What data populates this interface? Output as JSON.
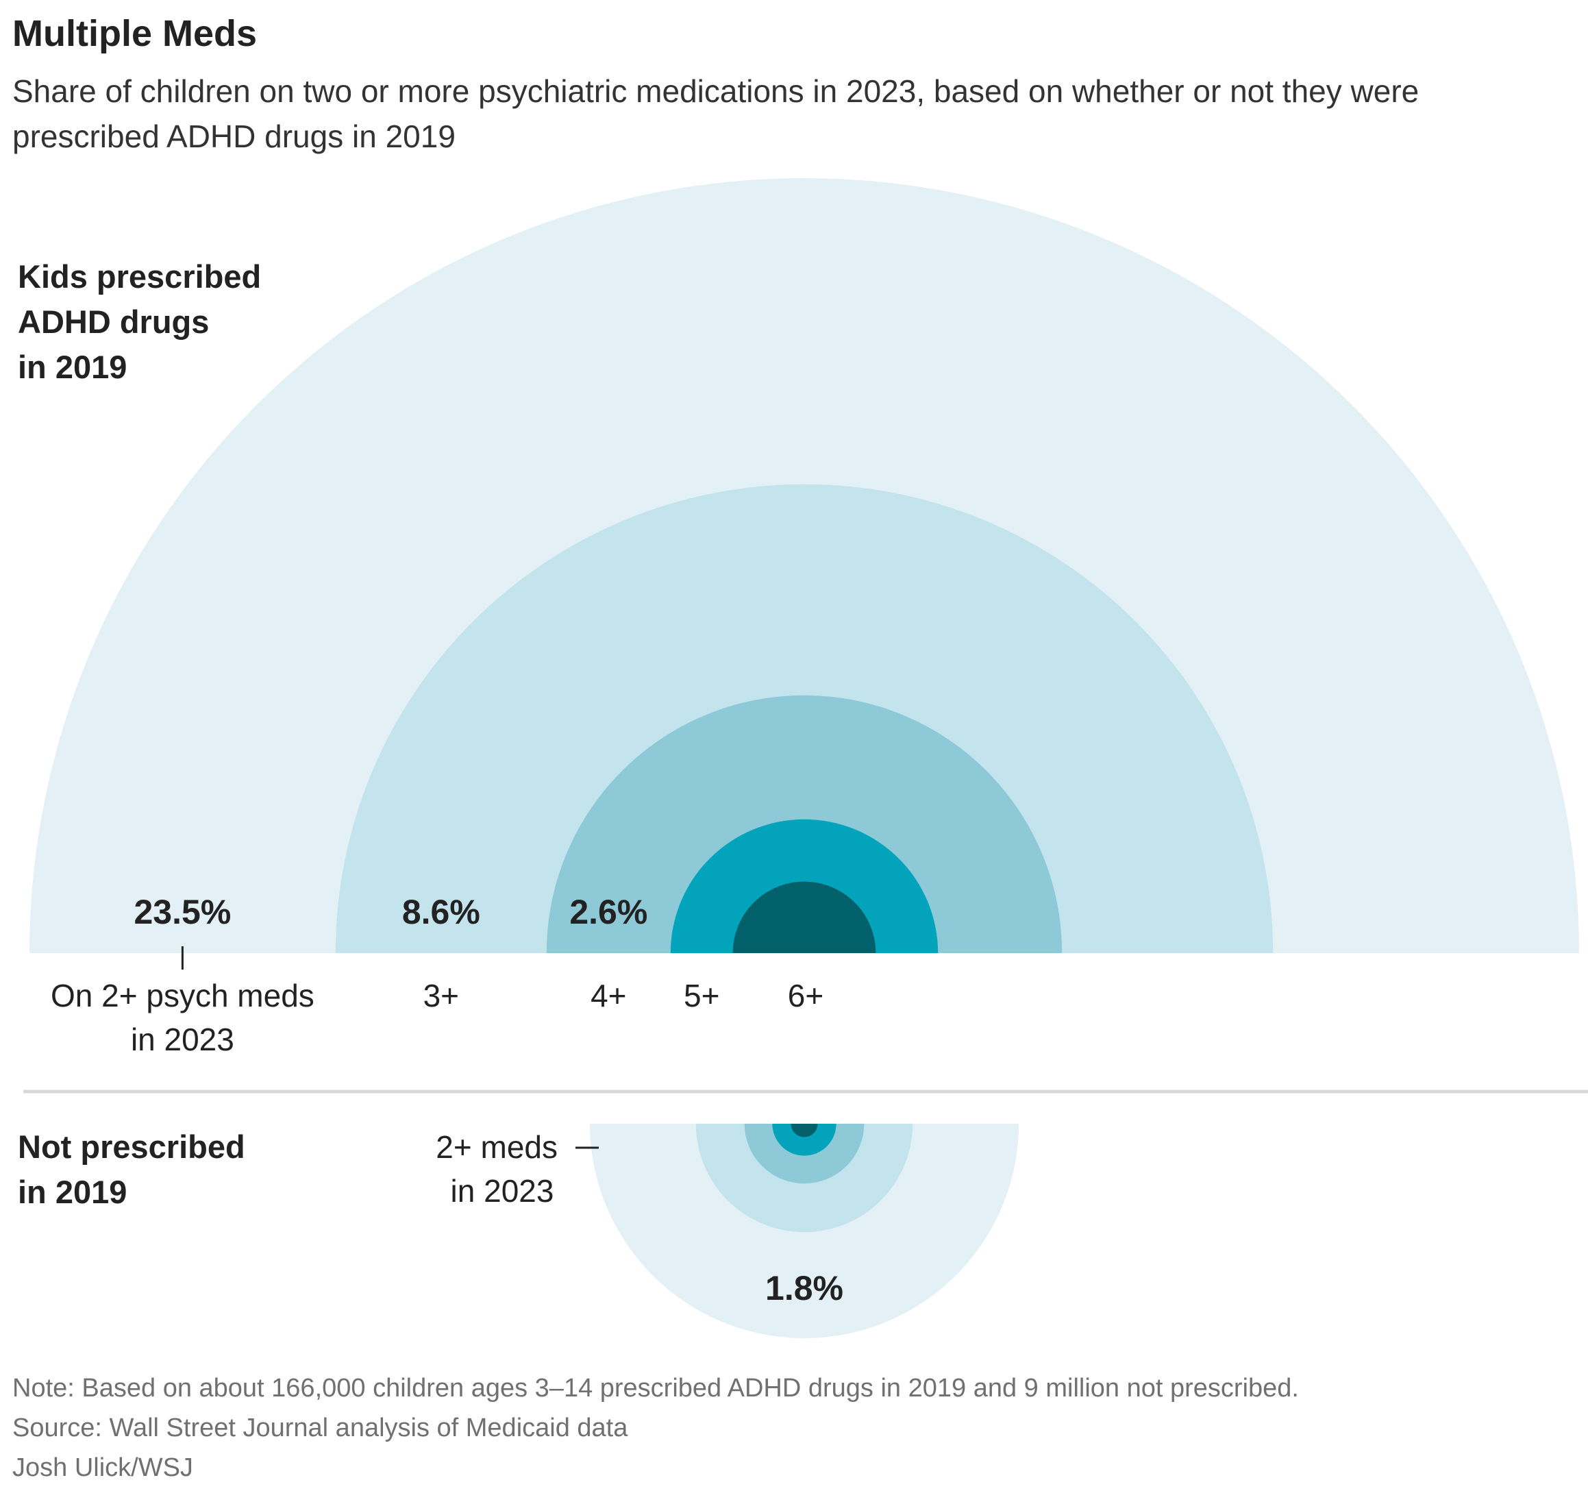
{
  "title": "Multiple Meds",
  "subtitle": "Share of children on two or more psychiatric medications in 2023, based on whether or not they were prescribed ADHD drugs in 2019",
  "colors": {
    "ring_2plus": "#e3f0f5",
    "ring_3plus": "#c3e3ed",
    "ring_4plus": "#8ec9d7",
    "ring_5plus": "#04a3bc",
    "ring_6plus": "#02606a",
    "divider": "#d9d9d9",
    "text": "#222222",
    "muted": "#707070"
  },
  "chart_data": {
    "type": "nested-semicircle-area",
    "groups": [
      {
        "name": "Kids prescribed ADHD drugs in 2019",
        "label_lines": [
          "Kids prescribed",
          "ADHD drugs",
          "in 2019"
        ],
        "direction": "up",
        "rings": [
          {
            "threshold": "2+",
            "value": 23.5,
            "value_label": "23.5%",
            "category_lines": [
              "On 2+ psych meds",
              "in 2023"
            ]
          },
          {
            "threshold": "3+",
            "value": 8.6,
            "value_label": "8.6%",
            "category_lines": [
              "3+"
            ]
          },
          {
            "threshold": "4+",
            "value": 2.6,
            "value_label": "2.6%",
            "category_lines": [
              "4+"
            ]
          },
          {
            "threshold": "5+",
            "value": 0.7,
            "value_label": null,
            "category_lines": [
              "5+"
            ]
          },
          {
            "threshold": "6+",
            "value": 0.2,
            "value_label": null,
            "category_lines": [
              "6+"
            ]
          }
        ]
      },
      {
        "name": "Not prescribed in 2019",
        "label_lines": [
          "Not prescribed",
          "in 2019"
        ],
        "direction": "down",
        "callout_lines": [
          "2+ meds",
          "in 2023"
        ],
        "rings": [
          {
            "threshold": "2+",
            "value": 1.8,
            "value_label": "1.8%"
          },
          {
            "threshold": "3+",
            "value": 0.46
          },
          {
            "threshold": "4+",
            "value": 0.14
          },
          {
            "threshold": "5+",
            "value": 0.04
          },
          {
            "threshold": "6+",
            "value": 0.007
          }
        ]
      }
    ],
    "encoding": "area proportional to share of children"
  },
  "footer": {
    "note": "Note: Based on about 166,000 children ages 3–14 prescribed ADHD drugs in 2019 and 9 million not prescribed.",
    "source": "Source: Wall Street Journal analysis of Medicaid data",
    "credit": "Josh Ulick/WSJ"
  }
}
